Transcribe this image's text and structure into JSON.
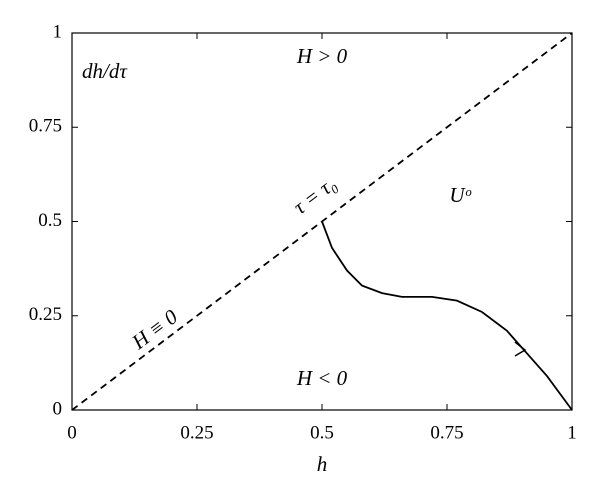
{
  "chart_data": {
    "type": "line",
    "xlabel": "h",
    "xlim": [
      0,
      1
    ],
    "ylim": [
      0,
      1
    ],
    "xticks": [
      0,
      0.25,
      0.5,
      0.75,
      1
    ],
    "yticks": [
      0,
      0.25,
      0.5,
      0.75,
      1
    ],
    "series": [
      {
        "color": "#000000",
        "linestyle": "dashed",
        "x": [
          0,
          1
        ],
        "values": [
          0,
          1
        ]
      },
      {
        "color": "#000000",
        "linestyle": "solid",
        "x": [
          0.5,
          0.52,
          0.55,
          0.58,
          0.62,
          0.66,
          0.72,
          0.77,
          0.82,
          0.87,
          0.91,
          0.95,
          1
        ],
        "values": [
          0.5,
          0.43,
          0.37,
          0.33,
          0.31,
          0.3,
          0.3,
          0.29,
          0.26,
          0.21,
          0.15,
          0.09,
          0
        ]
      }
    ],
    "annotations": [
      "dh/dτ",
      "H > 0",
      "H < 0",
      "Uᵒ",
      "τ = τ₀",
      "H ≡ 0"
    ]
  }
}
